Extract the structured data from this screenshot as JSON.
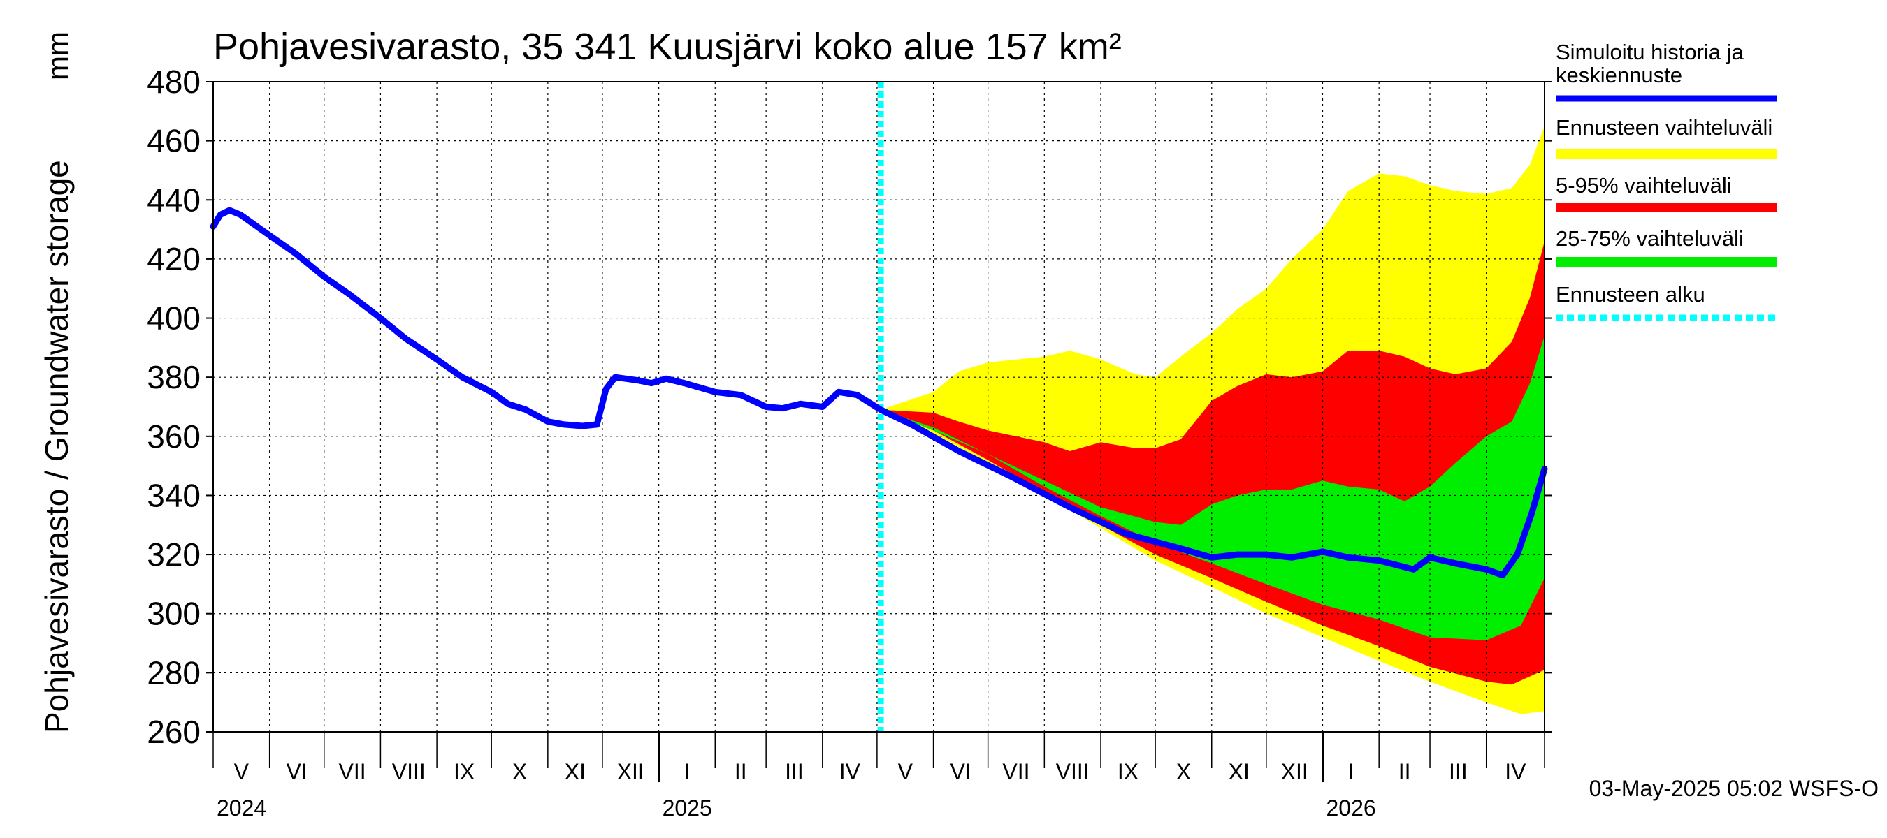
{
  "chart_data": {
    "type": "area",
    "title": "Pohjavesivarasto, 35 341 Kuusjärvi koko alue 157 km²",
    "ylabel": "Pohjavesivarasto / Groundwater storage",
    "yunit": "mm",
    "ylim": [
      260,
      480
    ],
    "yticks": [
      260,
      280,
      300,
      320,
      340,
      360,
      380,
      400,
      420,
      440,
      460,
      480
    ],
    "xlim": [
      "2024-05-01",
      "2026-05-03"
    ],
    "grid": true,
    "months": [
      {
        "label": "V",
        "start": "2024-05-01"
      },
      {
        "label": "VI",
        "start": "2024-06-01"
      },
      {
        "label": "VII",
        "start": "2024-07-01"
      },
      {
        "label": "VIII",
        "start": "2024-08-01"
      },
      {
        "label": "IX",
        "start": "2024-09-01"
      },
      {
        "label": "X",
        "start": "2024-10-01"
      },
      {
        "label": "XI",
        "start": "2024-11-01"
      },
      {
        "label": "XII",
        "start": "2024-12-01"
      },
      {
        "label": "I",
        "start": "2025-01-01"
      },
      {
        "label": "II",
        "start": "2025-02-01"
      },
      {
        "label": "III",
        "start": "2025-03-01"
      },
      {
        "label": "IV",
        "start": "2025-04-01"
      },
      {
        "label": "V",
        "start": "2025-05-01"
      },
      {
        "label": "VI",
        "start": "2025-06-01"
      },
      {
        "label": "VII",
        "start": "2025-07-01"
      },
      {
        "label": "VIII",
        "start": "2025-08-01"
      },
      {
        "label": "IX",
        "start": "2025-09-01"
      },
      {
        "label": "X",
        "start": "2025-10-01"
      },
      {
        "label": "XI",
        "start": "2025-11-01"
      },
      {
        "label": "XII",
        "start": "2025-12-01"
      },
      {
        "label": "I",
        "start": "2026-01-01"
      },
      {
        "label": "II",
        "start": "2026-02-01"
      },
      {
        "label": "III",
        "start": "2026-03-01"
      },
      {
        "label": "IV",
        "start": "2026-04-01"
      }
    ],
    "years": [
      {
        "label": "2024",
        "date": "2024-05-01"
      },
      {
        "label": "2025",
        "date": "2025-01-01"
      },
      {
        "label": "2026",
        "date": "2026-01-01"
      }
    ],
    "forecast_start": "2025-05-03",
    "series": [
      {
        "name": "Simuloitu historia ja keskiennuste",
        "color": "#0000ff",
        "points": [
          [
            "2024-05-01",
            431
          ],
          [
            "2024-05-05",
            435
          ],
          [
            "2024-05-10",
            436.5
          ],
          [
            "2024-05-16",
            435
          ],
          [
            "2024-06-01",
            428
          ],
          [
            "2024-06-15",
            422
          ],
          [
            "2024-07-01",
            414
          ],
          [
            "2024-07-15",
            408
          ],
          [
            "2024-08-01",
            400
          ],
          [
            "2024-08-15",
            393
          ],
          [
            "2024-09-01",
            386
          ],
          [
            "2024-09-15",
            380
          ],
          [
            "2024-10-01",
            375
          ],
          [
            "2024-10-10",
            371
          ],
          [
            "2024-10-20",
            369
          ],
          [
            "2024-11-01",
            365
          ],
          [
            "2024-11-10",
            364
          ],
          [
            "2024-11-20",
            363.5
          ],
          [
            "2024-11-28",
            364
          ],
          [
            "2024-12-03",
            376
          ],
          [
            "2024-12-08",
            380
          ],
          [
            "2024-12-20",
            379
          ],
          [
            "2024-12-28",
            378
          ],
          [
            "2025-01-05",
            379.5
          ],
          [
            "2025-01-15",
            378
          ],
          [
            "2025-02-01",
            375
          ],
          [
            "2025-02-15",
            374
          ],
          [
            "2025-03-01",
            370
          ],
          [
            "2025-03-10",
            369.5
          ],
          [
            "2025-03-20",
            371
          ],
          [
            "2025-04-01",
            370
          ],
          [
            "2025-04-10",
            375
          ],
          [
            "2025-04-20",
            374
          ],
          [
            "2025-05-03",
            369
          ],
          [
            "2025-05-20",
            364
          ],
          [
            "2025-06-15",
            355
          ],
          [
            "2025-07-15",
            346
          ],
          [
            "2025-08-15",
            336
          ],
          [
            "2025-09-15",
            327
          ],
          [
            "2025-10-15",
            322
          ],
          [
            "2025-11-01",
            319
          ],
          [
            "2025-11-15",
            320
          ],
          [
            "2025-12-01",
            320
          ],
          [
            "2025-12-15",
            319
          ],
          [
            "2026-01-01",
            321
          ],
          [
            "2026-01-15",
            319
          ],
          [
            "2026-02-01",
            318
          ],
          [
            "2026-02-20",
            315
          ],
          [
            "2026-03-01",
            319
          ],
          [
            "2026-03-15",
            317
          ],
          [
            "2026-04-01",
            315
          ],
          [
            "2026-04-10",
            313
          ],
          [
            "2026-04-18",
            320
          ],
          [
            "2026-04-26",
            334
          ],
          [
            "2026-05-03",
            349
          ]
        ]
      },
      {
        "name": "Ennusteen vaihteluväli",
        "color": "#ffff00",
        "upper": [
          [
            "2025-05-03",
            369
          ],
          [
            "2025-06-01",
            375
          ],
          [
            "2025-06-15",
            382
          ],
          [
            "2025-07-01",
            385
          ],
          [
            "2025-08-01",
            387
          ],
          [
            "2025-08-15",
            389
          ],
          [
            "2025-09-01",
            386
          ],
          [
            "2025-09-20",
            381
          ],
          [
            "2025-10-01",
            380
          ],
          [
            "2025-10-15",
            387
          ],
          [
            "2025-11-01",
            395
          ],
          [
            "2025-11-15",
            403
          ],
          [
            "2025-12-01",
            410
          ],
          [
            "2025-12-15",
            420
          ],
          [
            "2026-01-01",
            430
          ],
          [
            "2026-01-15",
            443
          ],
          [
            "2026-02-01",
            449
          ],
          [
            "2026-02-15",
            448
          ],
          [
            "2026-03-01",
            445
          ],
          [
            "2026-03-15",
            443
          ],
          [
            "2026-04-01",
            442
          ],
          [
            "2026-04-15",
            444
          ],
          [
            "2026-04-25",
            452
          ],
          [
            "2026-05-03",
            465
          ]
        ],
        "lower": [
          [
            "2025-05-03",
            369
          ],
          [
            "2025-06-01",
            361
          ],
          [
            "2025-07-01",
            351
          ],
          [
            "2025-08-01",
            340
          ],
          [
            "2025-09-01",
            329
          ],
          [
            "2025-10-01",
            318
          ],
          [
            "2025-11-01",
            309
          ],
          [
            "2025-12-01",
            300
          ],
          [
            "2026-01-01",
            292
          ],
          [
            "2026-02-01",
            284
          ],
          [
            "2026-03-01",
            277
          ],
          [
            "2026-04-01",
            270
          ],
          [
            "2026-04-20",
            266
          ],
          [
            "2026-05-03",
            267
          ]
        ]
      },
      {
        "name": "5-95% vaihteluväli",
        "color": "#ff0000",
        "upper": [
          [
            "2025-05-03",
            369
          ],
          [
            "2025-06-01",
            368
          ],
          [
            "2025-06-15",
            365
          ],
          [
            "2025-07-01",
            362
          ],
          [
            "2025-08-01",
            358
          ],
          [
            "2025-08-15",
            355
          ],
          [
            "2025-09-01",
            358
          ],
          [
            "2025-09-20",
            356
          ],
          [
            "2025-10-01",
            356
          ],
          [
            "2025-10-15",
            359
          ],
          [
            "2025-11-01",
            372
          ],
          [
            "2025-11-15",
            377
          ],
          [
            "2025-12-01",
            381
          ],
          [
            "2025-12-15",
            380
          ],
          [
            "2026-01-01",
            382
          ],
          [
            "2026-01-15",
            389
          ],
          [
            "2026-02-01",
            389
          ],
          [
            "2026-02-15",
            387
          ],
          [
            "2026-03-01",
            383
          ],
          [
            "2026-03-15",
            381
          ],
          [
            "2026-04-01",
            383
          ],
          [
            "2026-04-15",
            392
          ],
          [
            "2026-04-25",
            407
          ],
          [
            "2026-05-03",
            426
          ]
        ],
        "lower": [
          [
            "2025-05-03",
            369
          ],
          [
            "2025-06-01",
            362
          ],
          [
            "2025-07-01",
            352
          ],
          [
            "2025-08-01",
            341
          ],
          [
            "2025-09-01",
            330
          ],
          [
            "2025-10-01",
            320
          ],
          [
            "2025-11-01",
            312
          ],
          [
            "2025-12-01",
            304
          ],
          [
            "2026-01-01",
            296
          ],
          [
            "2026-02-01",
            289
          ],
          [
            "2026-03-01",
            282
          ],
          [
            "2026-04-01",
            277
          ],
          [
            "2026-04-15",
            276
          ],
          [
            "2026-05-03",
            281
          ]
        ]
      },
      {
        "name": "25-75% vaihteluväli",
        "color": "#00ee00",
        "upper": [
          [
            "2025-05-03",
            369
          ],
          [
            "2025-06-01",
            362
          ],
          [
            "2025-07-01",
            354
          ],
          [
            "2025-08-01",
            345
          ],
          [
            "2025-09-01",
            336
          ],
          [
            "2025-10-01",
            331
          ],
          [
            "2025-10-15",
            330
          ],
          [
            "2025-11-01",
            337
          ],
          [
            "2025-11-15",
            340
          ],
          [
            "2025-12-01",
            342
          ],
          [
            "2025-12-15",
            342
          ],
          [
            "2026-01-01",
            345
          ],
          [
            "2026-01-15",
            343
          ],
          [
            "2026-02-01",
            342
          ],
          [
            "2026-02-15",
            338
          ],
          [
            "2026-03-01",
            343
          ],
          [
            "2026-03-15",
            351
          ],
          [
            "2026-04-01",
            360
          ],
          [
            "2026-04-15",
            365
          ],
          [
            "2026-04-25",
            378
          ],
          [
            "2026-05-03",
            394
          ]
        ],
        "lower": [
          [
            "2025-05-03",
            369
          ],
          [
            "2025-06-01",
            363
          ],
          [
            "2025-07-01",
            354
          ],
          [
            "2025-08-01",
            343
          ],
          [
            "2025-09-01",
            333
          ],
          [
            "2025-10-01",
            324
          ],
          [
            "2025-11-01",
            317
          ],
          [
            "2025-12-01",
            310
          ],
          [
            "2026-01-01",
            303
          ],
          [
            "2026-02-01",
            298
          ],
          [
            "2026-03-01",
            292
          ],
          [
            "2026-04-01",
            291
          ],
          [
            "2026-04-20",
            296
          ],
          [
            "2026-05-03",
            312
          ]
        ]
      },
      {
        "name": "Ennusteen alku",
        "color": "#00ffff",
        "style": "dotted"
      }
    ],
    "legend": {
      "placement": "right",
      "items": [
        {
          "label": "Simuloitu historia ja keskiennuste",
          "color": "#0000ff",
          "style": "line"
        },
        {
          "label": "Ennusteen vaihteluväli",
          "color": "#ffff00",
          "style": "band"
        },
        {
          "label": "5-95% vaihteluväli",
          "color": "#ff0000",
          "style": "band"
        },
        {
          "label": "25-75% vaihteluväli",
          "color": "#00ee00",
          "style": "band"
        },
        {
          "label": "Ennusteen alku",
          "color": "#00ffff",
          "style": "dotted"
        }
      ]
    },
    "timestamp": "03-May-2025 05:02 WSFS-O"
  }
}
